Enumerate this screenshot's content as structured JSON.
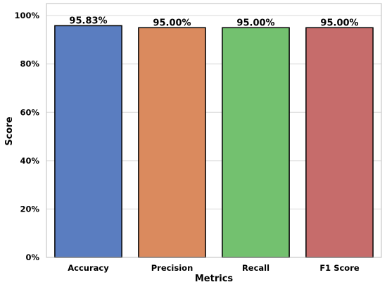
{
  "chart_data": {
    "type": "bar",
    "title": "",
    "xlabel": "Metrics",
    "ylabel": "Score",
    "categories": [
      "Accuracy",
      "Precision",
      "Recall",
      "F1 Score"
    ],
    "values": [
      95.83,
      95.0,
      95.0,
      95.0
    ],
    "data_labels": [
      "95.83%",
      "95.00%",
      "95.00%",
      "95.00%"
    ],
    "colors": [
      "#5a7dc0",
      "#da8a5e",
      "#73c16f",
      "#c66c6b"
    ],
    "ylim": [
      0,
      105
    ],
    "yticks": [
      0,
      20,
      40,
      60,
      80,
      100
    ],
    "ytick_labels": [
      "0%",
      "20%",
      "40%",
      "60%",
      "80%",
      "100%"
    ],
    "grid": "horizontal",
    "legend": "none"
  }
}
